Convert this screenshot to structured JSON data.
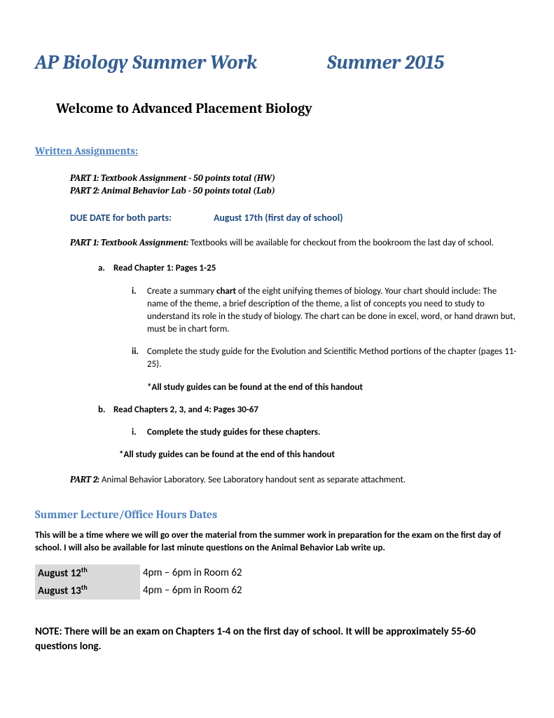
{
  "title": {
    "left": "AP Biology Summer Work",
    "right": "Summer 2015"
  },
  "welcome": "Welcome to Advanced Placement Biology",
  "written_assignments_heading": "Written Assignments:",
  "parts": {
    "part1_summary": "PART 1: Textbook Assignment  - 50 points total (HW)",
    "part2_summary": "PART 2: Animal Behavior Lab -  50 points total (Lab)"
  },
  "due_date": {
    "label": "DUE  DATE for both parts:",
    "value": "August 17th (first day of school)"
  },
  "part1_body": {
    "label": "PART 1:",
    "sublabel": " Textbook Assignment:",
    "text": " Textbooks  will be available for checkout from the bookroom the last day of school."
  },
  "item_a": {
    "marker": "a.",
    "text": "Read Chapter 1: Pages 1-25"
  },
  "item_a_i": {
    "marker": "i.",
    "text_before": "Create a summary ",
    "bold_word": "chart",
    "text_after": " of the eight unifying themes of biology. Your chart should include: The name of the theme, a brief description of the theme, a list of concepts you need to study to understand its role in the study of biology. The chart can be done in excel, word, or hand drawn but, must be in chart form."
  },
  "item_a_ii": {
    "marker": "ii.",
    "text": "Complete the study guide for the Evolution and Scientific Method portions of the chapter (pages 11-25)."
  },
  "study_note_1": "*All study guides can be found at the end of this handout",
  "item_b": {
    "marker": "b.",
    "text": "Read Chapters 2, 3, and 4: Pages  30-67"
  },
  "item_b_i": {
    "marker": "i.",
    "text": "Complete the study guides  for these chapters."
  },
  "study_note_2": "*All study guides can be found at the end of this handout",
  "part2_body": {
    "label": "PART 2:",
    "sublabel": " Animal Behavior Laboratory.",
    "text": " See Laboratory handout sent as separate attachment."
  },
  "office_hours_heading": "Summer Lecture/Office Hours Dates",
  "office_hours_desc": "This will be a time where we will go over the material from the summer work in preparation for the exam on the first day of school. I will also be available for last minute questions on the Animal Behavior Lab write up.",
  "schedule": [
    {
      "date": "August 12",
      "sup": "th",
      "time": "4pm – 6pm in Room 62"
    },
    {
      "date": "August 13",
      "sup": "th",
      "time": "4pm – 6pm in Room 62"
    }
  ],
  "final_note": "NOTE: There will be an exam on Chapters 1-4 on the first day of school. It will be approximately 55-60 questions long."
}
